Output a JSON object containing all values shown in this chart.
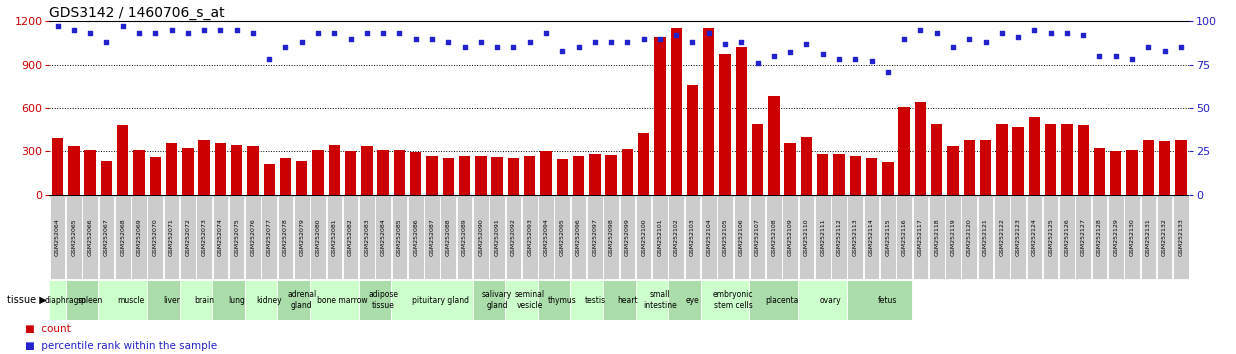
{
  "title": "GDS3142 / 1460706_s_at",
  "samples": [
    "GSM252064",
    "GSM252065",
    "GSM252066",
    "GSM252067",
    "GSM252068",
    "GSM252069",
    "GSM252070",
    "GSM252071",
    "GSM252072",
    "GSM252073",
    "GSM252074",
    "GSM252075",
    "GSM252076",
    "GSM252077",
    "GSM252078",
    "GSM252079",
    "GSM252080",
    "GSM252081",
    "GSM252082",
    "GSM252083",
    "GSM252084",
    "GSM252085",
    "GSM252086",
    "GSM252087",
    "GSM252088",
    "GSM252089",
    "GSM252090",
    "GSM252091",
    "GSM252092",
    "GSM252093",
    "GSM252094",
    "GSM252095",
    "GSM252096",
    "GSM252097",
    "GSM252098",
    "GSM252099",
    "GSM252100",
    "GSM252101",
    "GSM252102",
    "GSM252103",
    "GSM252104",
    "GSM252105",
    "GSM252106",
    "GSM252107",
    "GSM252108",
    "GSM252109",
    "GSM252110",
    "GSM252111",
    "GSM252112",
    "GSM252113",
    "GSM252114",
    "GSM252115",
    "GSM252116",
    "GSM252117",
    "GSM252118",
    "GSM252119",
    "GSM252120",
    "GSM252121",
    "GSM252122",
    "GSM252123",
    "GSM252124",
    "GSM252125",
    "GSM252126",
    "GSM252127",
    "GSM252128",
    "GSM252129",
    "GSM252130",
    "GSM252131",
    "GSM252132",
    "GSM252133"
  ],
  "counts": [
    390,
    340,
    310,
    230,
    480,
    310,
    260,
    360,
    320,
    380,
    360,
    345,
    340,
    215,
    255,
    230,
    310,
    345,
    305,
    335,
    310,
    310,
    295,
    265,
    255,
    270,
    265,
    260,
    255,
    265,
    300,
    245,
    270,
    285,
    275,
    315,
    430,
    1090,
    1150,
    760,
    1150,
    970,
    1020,
    490,
    680,
    355,
    400,
    280,
    280,
    265,
    255,
    225,
    610,
    640,
    490,
    335,
    380,
    375,
    490,
    470,
    540,
    490,
    490,
    480,
    320,
    305,
    310,
    380,
    370,
    380
  ],
  "percentile": [
    97,
    95,
    93,
    88,
    97,
    93,
    93,
    95,
    93,
    95,
    95,
    95,
    93,
    78,
    85,
    88,
    93,
    93,
    90,
    93,
    93,
    93,
    90,
    90,
    88,
    85,
    88,
    85,
    85,
    88,
    93,
    83,
    85,
    88,
    88,
    88,
    90,
    90,
    92,
    88,
    93,
    87,
    88,
    76,
    80,
    82,
    87,
    81,
    78,
    78,
    77,
    71,
    90,
    95,
    93,
    85,
    90,
    88,
    93,
    91,
    95,
    93,
    93,
    92,
    80,
    80,
    78,
    85,
    83,
    85
  ],
  "tissues": [
    {
      "name": "diaphragm",
      "start": 0,
      "end": 1,
      "alt": false
    },
    {
      "name": "spleen",
      "start": 1,
      "end": 3,
      "alt": true
    },
    {
      "name": "muscle",
      "start": 3,
      "end": 6,
      "alt": false
    },
    {
      "name": "liver",
      "start": 6,
      "end": 8,
      "alt": true
    },
    {
      "name": "brain",
      "start": 8,
      "end": 10,
      "alt": false
    },
    {
      "name": "lung",
      "start": 10,
      "end": 12,
      "alt": true
    },
    {
      "name": "kidney",
      "start": 12,
      "end": 14,
      "alt": false
    },
    {
      "name": "adrenal\ngland",
      "start": 14,
      "end": 16,
      "alt": true
    },
    {
      "name": "bone marrow",
      "start": 16,
      "end": 19,
      "alt": false
    },
    {
      "name": "adipose\ntissue",
      "start": 19,
      "end": 21,
      "alt": true
    },
    {
      "name": "pituitary gland",
      "start": 21,
      "end": 26,
      "alt": false
    },
    {
      "name": "salivary\ngland",
      "start": 26,
      "end": 28,
      "alt": true
    },
    {
      "name": "seminal\nvesicle",
      "start": 28,
      "end": 30,
      "alt": false
    },
    {
      "name": "thymus",
      "start": 30,
      "end": 32,
      "alt": true
    },
    {
      "name": "testis",
      "start": 32,
      "end": 34,
      "alt": false
    },
    {
      "name": "heart",
      "start": 34,
      "end": 36,
      "alt": true
    },
    {
      "name": "small\nintestine",
      "start": 36,
      "end": 38,
      "alt": false
    },
    {
      "name": "eye",
      "start": 38,
      "end": 40,
      "alt": true
    },
    {
      "name": "embryonic\nstem cells",
      "start": 40,
      "end": 43,
      "alt": false
    },
    {
      "name": "placenta",
      "start": 43,
      "end": 46,
      "alt": true
    },
    {
      "name": "ovary",
      "start": 46,
      "end": 49,
      "alt": false
    },
    {
      "name": "fetus",
      "start": 49,
      "end": 53,
      "alt": true
    }
  ],
  "tissue_color_a": "#aaddaa",
  "tissue_color_b": "#ccffcc",
  "bar_color": "#cc0000",
  "dot_color": "#2222cc",
  "left_ylim": [
    0,
    1200
  ],
  "left_yticks": [
    0,
    300,
    600,
    900,
    1200
  ],
  "right_ylim": [
    0,
    100
  ],
  "right_yticks": [
    0,
    25,
    50,
    75,
    100
  ],
  "sample_bg_color": "#cccccc",
  "sample_border_color": "#ffffff",
  "legend_count_color": "#cc0000",
  "legend_pct_color": "#2222cc"
}
